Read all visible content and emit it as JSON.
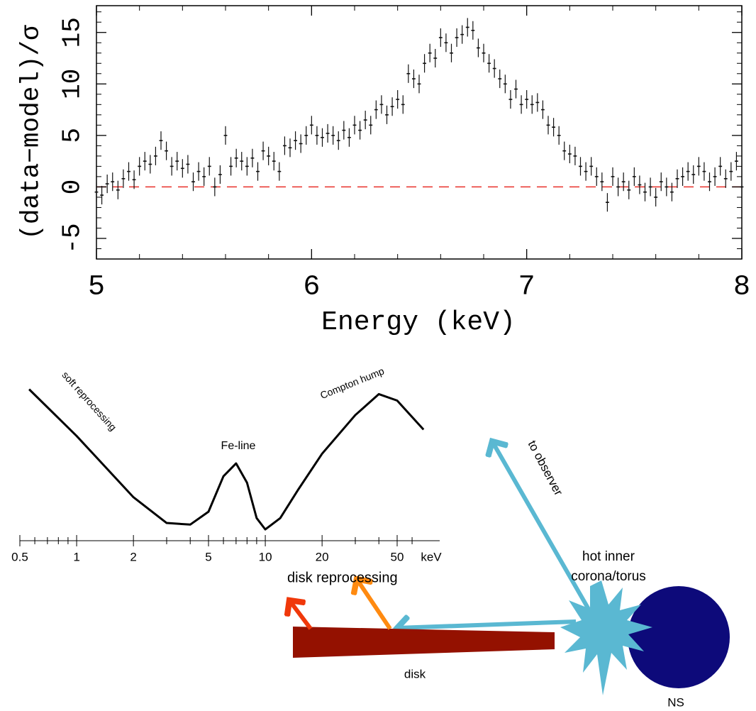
{
  "chart_data": [
    {
      "type": "scatter",
      "x_label": "Energy (keV)",
      "y_label": "(data−model)/σ",
      "xlim": [
        5,
        8
      ],
      "ylim": [
        -7,
        17.6
      ],
      "xticks": [
        5,
        6,
        7,
        8
      ],
      "yticks": [
        -5,
        0,
        5,
        10,
        15
      ],
      "minor_xticks": [
        5.2,
        5.4,
        5.6,
        5.8,
        6.2,
        6.4,
        6.6,
        6.8,
        7.2,
        7.4,
        7.6,
        7.8
      ],
      "minor_yticks": [
        -6,
        -4,
        -3,
        -2,
        -1,
        1,
        2,
        3,
        4,
        6,
        7,
        8,
        9,
        11,
        12,
        13,
        14,
        16,
        17
      ],
      "hline": 0,
      "hline_color": "#e8302a",
      "color": "#111111",
      "yerr": 0.9,
      "xerr": 0.008,
      "x": [
        5,
        5.025,
        5.05,
        5.075,
        5.1,
        5.125,
        5.15,
        5.175,
        5.2,
        5.225,
        5.25,
        5.275,
        5.3,
        5.325,
        5.35,
        5.375,
        5.4,
        5.425,
        5.45,
        5.475,
        5.5,
        5.525,
        5.55,
        5.575,
        5.6,
        5.625,
        5.65,
        5.675,
        5.7,
        5.725,
        5.75,
        5.775,
        5.8,
        5.825,
        5.85,
        5.875,
        5.9,
        5.925,
        5.95,
        5.975,
        6,
        6.025,
        6.05,
        6.075,
        6.1,
        6.125,
        6.15,
        6.175,
        6.2,
        6.225,
        6.25,
        6.275,
        6.3,
        6.325,
        6.35,
        6.375,
        6.4,
        6.425,
        6.45,
        6.475,
        6.5,
        6.525,
        6.55,
        6.575,
        6.6,
        6.625,
        6.65,
        6.675,
        6.7,
        6.725,
        6.75,
        6.775,
        6.8,
        6.825,
        6.85,
        6.875,
        6.9,
        6.925,
        6.95,
        6.975,
        7,
        7.025,
        7.05,
        7.075,
        7.1,
        7.125,
        7.15,
        7.175,
        7.2,
        7.225,
        7.25,
        7.275,
        7.3,
        7.325,
        7.35,
        7.375,
        7.4,
        7.425,
        7.45,
        7.475,
        7.5,
        7.525,
        7.55,
        7.575,
        7.6,
        7.625,
        7.65,
        7.675,
        7.7,
        7.725,
        7.75,
        7.775,
        7.8,
        7.825,
        7.85,
        7.875,
        7.9,
        7.925,
        7.95,
        7.975,
        8
      ],
      "values": [
        -0.5,
        -0.8,
        0.3,
        0.5,
        -0.3,
        0.8,
        1.5,
        0.7,
        2,
        2.5,
        2.2,
        3,
        4.5,
        3.5,
        2,
        2.5,
        1.8,
        2.2,
        0.5,
        1.5,
        1,
        2,
        0,
        1.2,
        5,
        2,
        2.8,
        2.5,
        2,
        2.8,
        1.5,
        3.5,
        3,
        2.5,
        1.5,
        4,
        3.8,
        4.5,
        4.2,
        5,
        6,
        5,
        4.8,
        5.2,
        5,
        4.5,
        5.5,
        4.8,
        6,
        5.5,
        6.5,
        6,
        7.5,
        8,
        7,
        7.8,
        8.5,
        8,
        11,
        10.5,
        10,
        12,
        13,
        12.5,
        14.5,
        14,
        13,
        14.5,
        14.8,
        15.5,
        15.2,
        13.5,
        13,
        12,
        11.5,
        10.5,
        10,
        8.5,
        9.5,
        8,
        8.5,
        8,
        8.2,
        7.5,
        6,
        5.8,
        5,
        3.5,
        3.2,
        3,
        2,
        1.5,
        2,
        1,
        0.5,
        -1.5,
        1,
        0,
        0.5,
        -0.3,
        1,
        0.2,
        -0.5,
        0,
        -1,
        0.5,
        0,
        -0.5,
        0.8,
        1,
        1.5,
        1.2,
        2,
        1.5,
        0.5,
        1,
        2,
        0.8,
        1.5,
        2.5,
        0
      ]
    },
    {
      "type": "line",
      "log_x": true,
      "x_unit": "keV",
      "xlim": [
        0.5,
        100
      ],
      "ylim": [
        0,
        100
      ],
      "xticks": [
        0.5,
        1,
        2,
        5,
        10,
        20,
        50
      ],
      "minor_xticks": [
        0.6,
        0.7,
        0.8,
        0.9,
        3,
        4,
        6,
        7,
        8,
        9,
        30,
        40,
        60
      ],
      "annotations": [
        "soft reprocessing",
        "Fe-line",
        "Compton hump"
      ],
      "color": "#000000",
      "x": [
        0.56,
        1,
        2,
        3,
        4,
        5,
        6,
        7,
        8,
        9,
        10,
        12,
        15,
        20,
        30,
        40,
        50,
        69
      ],
      "values": [
        94,
        65,
        27,
        11,
        10,
        18,
        40,
        48,
        36,
        14,
        7,
        14,
        32,
        54,
        78,
        91,
        87,
        69
      ]
    }
  ],
  "diagram": {
    "disk_label": "disk reprocessing",
    "observer_label": "to observer",
    "corona_label": [
      "hot inner",
      "corona/torus"
    ],
    "disk": "disk",
    "star": "NS"
  }
}
